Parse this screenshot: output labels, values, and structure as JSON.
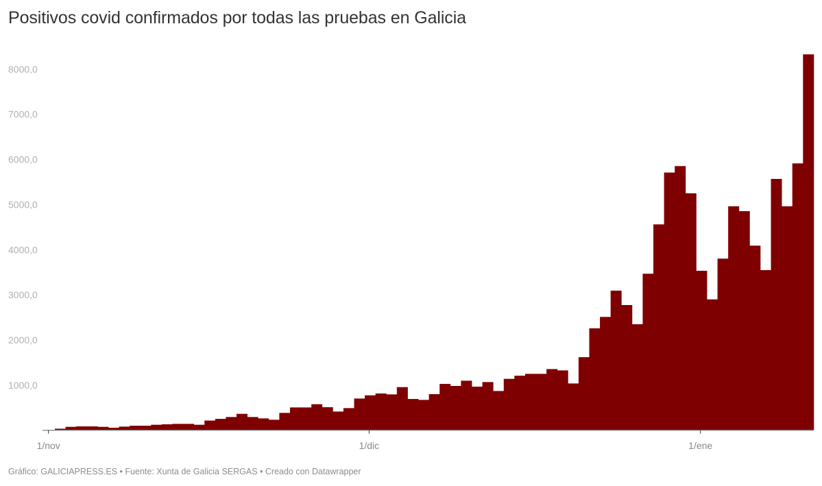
{
  "header": {
    "title": "Positivos covid confirmados por todas las pruebas en Galicia"
  },
  "footer": {
    "text": "Gráfico: GALICIAPRESS.ES • Fuente: Xunta de Galicia SERGAS • Creado con Datawrapper"
  },
  "colors": {
    "bar": "#7f0000",
    "axis": "#888888",
    "y_tick_label": "#b0b0b0",
    "x_tick_label": "#888888",
    "title": "#333333"
  },
  "chart_data": {
    "type": "bar",
    "title": "Positivos covid confirmados por todas las pruebas en Galicia",
    "xlabel": "",
    "ylabel": "",
    "ylim": [
      0,
      8327
    ],
    "grid": false,
    "legend": null,
    "y_ticks": [
      "1000,0",
      "2000,0",
      "3000,0",
      "4000,0",
      "5000,0",
      "6000,0",
      "7000,0",
      "8000,0"
    ],
    "y_tick_values": [
      1000,
      2000,
      3000,
      4000,
      5000,
      6000,
      7000,
      8000
    ],
    "x_ticks": [
      {
        "label": "1/nov",
        "index": 0
      },
      {
        "label": "1/dic",
        "index": 30
      },
      {
        "label": "1/ene",
        "index": 61
      }
    ],
    "categories": [
      "1/nov",
      "2/nov",
      "3/nov",
      "4/nov",
      "5/nov",
      "6/nov",
      "7/nov",
      "8/nov",
      "9/nov",
      "10/nov",
      "11/nov",
      "12/nov",
      "13/nov",
      "14/nov",
      "15/nov",
      "16/nov",
      "17/nov",
      "18/nov",
      "19/nov",
      "20/nov",
      "21/nov",
      "22/nov",
      "23/nov",
      "24/nov",
      "25/nov",
      "26/nov",
      "27/nov",
      "28/nov",
      "29/nov",
      "30/nov",
      "1/dic",
      "2/dic",
      "3/dic",
      "4/dic",
      "5/dic",
      "6/dic",
      "7/dic",
      "8/dic",
      "9/dic",
      "10/dic",
      "11/dic",
      "12/dic",
      "13/dic",
      "14/dic",
      "15/dic",
      "16/dic",
      "17/dic",
      "18/dic",
      "19/dic",
      "20/dic",
      "21/dic",
      "22/dic",
      "23/dic",
      "24/dic",
      "25/dic",
      "26/dic",
      "27/dic",
      "28/dic",
      "29/dic",
      "30/dic",
      "31/dic",
      "1/ene",
      "2/ene",
      "3/ene",
      "4/ene",
      "5/ene",
      "6/ene",
      "7/ene",
      "8/ene",
      "9/ene",
      "10/ene",
      "11/ene"
    ],
    "values": [
      5,
      35,
      76,
      86,
      86,
      76,
      56,
      81,
      101,
      101,
      122,
      132,
      142,
      142,
      122,
      215,
      253,
      294,
      364,
      294,
      263,
      233,
      385,
      506,
      506,
      577,
      511,
      415,
      491,
      703,
      774,
      815,
      795,
      956,
      693,
      673,
      800,
      1027,
      982,
      1098,
      966,
      1068,
      870,
      1139,
      1209,
      1250,
      1250,
      1356,
      1326,
      1037,
      1619,
      2258,
      2511,
      3093,
      2774,
      2349,
      3468,
      4561,
      5709,
      5852,
      5249,
      3533,
      2900,
      3802,
      4961,
      4854,
      4090,
      3548,
      5568,
      4961,
      5912,
      8327
    ]
  }
}
